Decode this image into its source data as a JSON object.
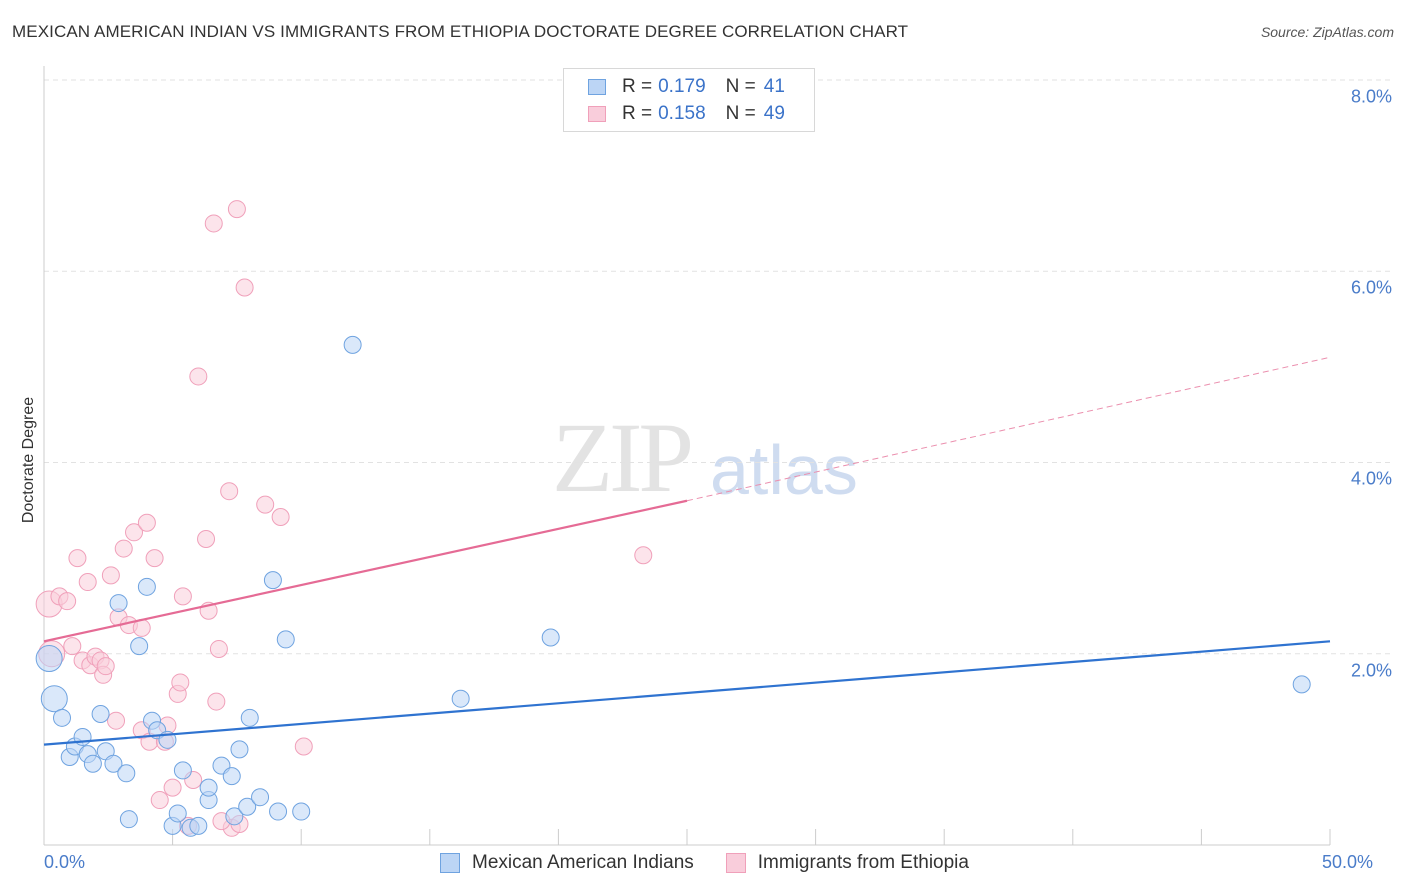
{
  "header": {
    "title": "MEXICAN AMERICAN INDIAN VS IMMIGRANTS FROM ETHIOPIA DOCTORATE DEGREE CORRELATION CHART",
    "source": "Source: ZipAtlas.com"
  },
  "watermark": {
    "zip": "ZIP",
    "atlas": "atlas"
  },
  "legend": {
    "series1": {
      "r_label": "R = ",
      "r_value": "0.179",
      "n_label": "N = ",
      "n_value": "41",
      "color": "#a8c8f0"
    },
    "series2": {
      "r_label": "R = ",
      "r_value": "0.158",
      "n_label": "N = ",
      "n_value": "49",
      "color": "#f5b8cc"
    }
  },
  "axes": {
    "ylabel": "Doctorate Degree",
    "yticks": [
      "8.0%",
      "6.0%",
      "4.0%",
      "2.0%"
    ],
    "xtick_left": "0.0%",
    "xtick_right": "50.0%"
  },
  "bottom_legend": {
    "series1": "Mexican American Indians",
    "series2": "Immigrants from Ethiopia"
  },
  "chart_data": {
    "type": "scatter",
    "title": "MEXICAN AMERICAN INDIAN VS IMMIGRANTS FROM ETHIOPIA DOCTORATE DEGREE CORRELATION CHART",
    "xlabel": "",
    "ylabel": "Doctorate Degree",
    "xlim": [
      0,
      50
    ],
    "ylim": [
      0,
      8.0
    ],
    "x_unit": "%",
    "y_unit": "%",
    "grid": true,
    "legend_position": "top-center",
    "series": [
      {
        "name": "Mexican American Indians",
        "color": "#6fa3e0",
        "R": 0.179,
        "N": 41,
        "trendline": {
          "x0": 0,
          "y0": 1.05,
          "x1": 50,
          "y1": 2.13
        },
        "points": [
          [
            0.2,
            1.95
          ],
          [
            0.4,
            1.53
          ],
          [
            0.7,
            1.33
          ],
          [
            1.0,
            0.92
          ],
          [
            1.2,
            1.03
          ],
          [
            1.5,
            1.13
          ],
          [
            1.7,
            0.95
          ],
          [
            1.9,
            0.85
          ],
          [
            2.2,
            1.37
          ],
          [
            2.4,
            0.98
          ],
          [
            2.7,
            0.85
          ],
          [
            2.9,
            2.53
          ],
          [
            3.2,
            0.75
          ],
          [
            3.3,
            0.27
          ],
          [
            3.7,
            2.08
          ],
          [
            4.0,
            2.7
          ],
          [
            4.2,
            1.3
          ],
          [
            4.4,
            1.2
          ],
          [
            4.8,
            1.1
          ],
          [
            5.0,
            0.2
          ],
          [
            5.2,
            0.33
          ],
          [
            5.4,
            0.78
          ],
          [
            5.7,
            0.18
          ],
          [
            6.0,
            0.2
          ],
          [
            6.4,
            0.47
          ],
          [
            6.4,
            0.6
          ],
          [
            6.9,
            0.83
          ],
          [
            7.3,
            0.72
          ],
          [
            7.4,
            0.3
          ],
          [
            7.6,
            1.0
          ],
          [
            7.9,
            0.4
          ],
          [
            8.0,
            1.33
          ],
          [
            8.4,
            0.5
          ],
          [
            8.9,
            2.77
          ],
          [
            9.1,
            0.35
          ],
          [
            9.4,
            2.15
          ],
          [
            10.0,
            0.35
          ],
          [
            12.0,
            5.23
          ],
          [
            16.2,
            1.53
          ],
          [
            19.7,
            2.17
          ],
          [
            48.9,
            1.68
          ]
        ]
      },
      {
        "name": "Immigrants from Ethiopia",
        "color": "#f0a0ba",
        "R": 0.158,
        "N": 49,
        "trendline": {
          "x0": 0,
          "y0": 2.13,
          "x1": 25,
          "y1": 3.6,
          "dashed_extension": {
            "x1": 50,
            "y1": 5.1
          }
        },
        "points": [
          [
            0.2,
            2.52
          ],
          [
            0.3,
            2.0
          ],
          [
            0.6,
            2.6
          ],
          [
            0.9,
            2.55
          ],
          [
            1.1,
            2.08
          ],
          [
            1.3,
            3.0
          ],
          [
            1.5,
            1.93
          ],
          [
            1.7,
            2.75
          ],
          [
            1.8,
            1.88
          ],
          [
            2.0,
            1.97
          ],
          [
            2.2,
            1.93
          ],
          [
            2.3,
            1.78
          ],
          [
            2.4,
            1.87
          ],
          [
            2.6,
            2.82
          ],
          [
            2.8,
            1.3
          ],
          [
            2.9,
            2.38
          ],
          [
            3.1,
            3.1
          ],
          [
            3.3,
            2.3
          ],
          [
            3.5,
            3.27
          ],
          [
            3.8,
            1.2
          ],
          [
            3.8,
            2.27
          ],
          [
            4.0,
            3.37
          ],
          [
            4.1,
            1.08
          ],
          [
            4.3,
            3.0
          ],
          [
            4.5,
            0.47
          ],
          [
            4.7,
            1.08
          ],
          [
            4.8,
            1.25
          ],
          [
            5.2,
            1.58
          ],
          [
            5.3,
            1.7
          ],
          [
            5.4,
            2.6
          ],
          [
            5.6,
            0.2
          ],
          [
            5.8,
            0.68
          ],
          [
            6.0,
            4.9
          ],
          [
            6.3,
            3.2
          ],
          [
            6.4,
            2.45
          ],
          [
            6.6,
            6.5
          ],
          [
            6.7,
            1.5
          ],
          [
            6.8,
            2.05
          ],
          [
            7.2,
            3.7
          ],
          [
            7.3,
            0.18
          ],
          [
            7.5,
            6.65
          ],
          [
            7.6,
            0.22
          ],
          [
            7.8,
            5.83
          ],
          [
            8.6,
            3.56
          ],
          [
            9.2,
            3.43
          ],
          [
            10.1,
            1.03
          ],
          [
            23.3,
            3.03
          ],
          [
            6.9,
            0.25
          ],
          [
            5.0,
            0.6
          ]
        ]
      }
    ]
  }
}
